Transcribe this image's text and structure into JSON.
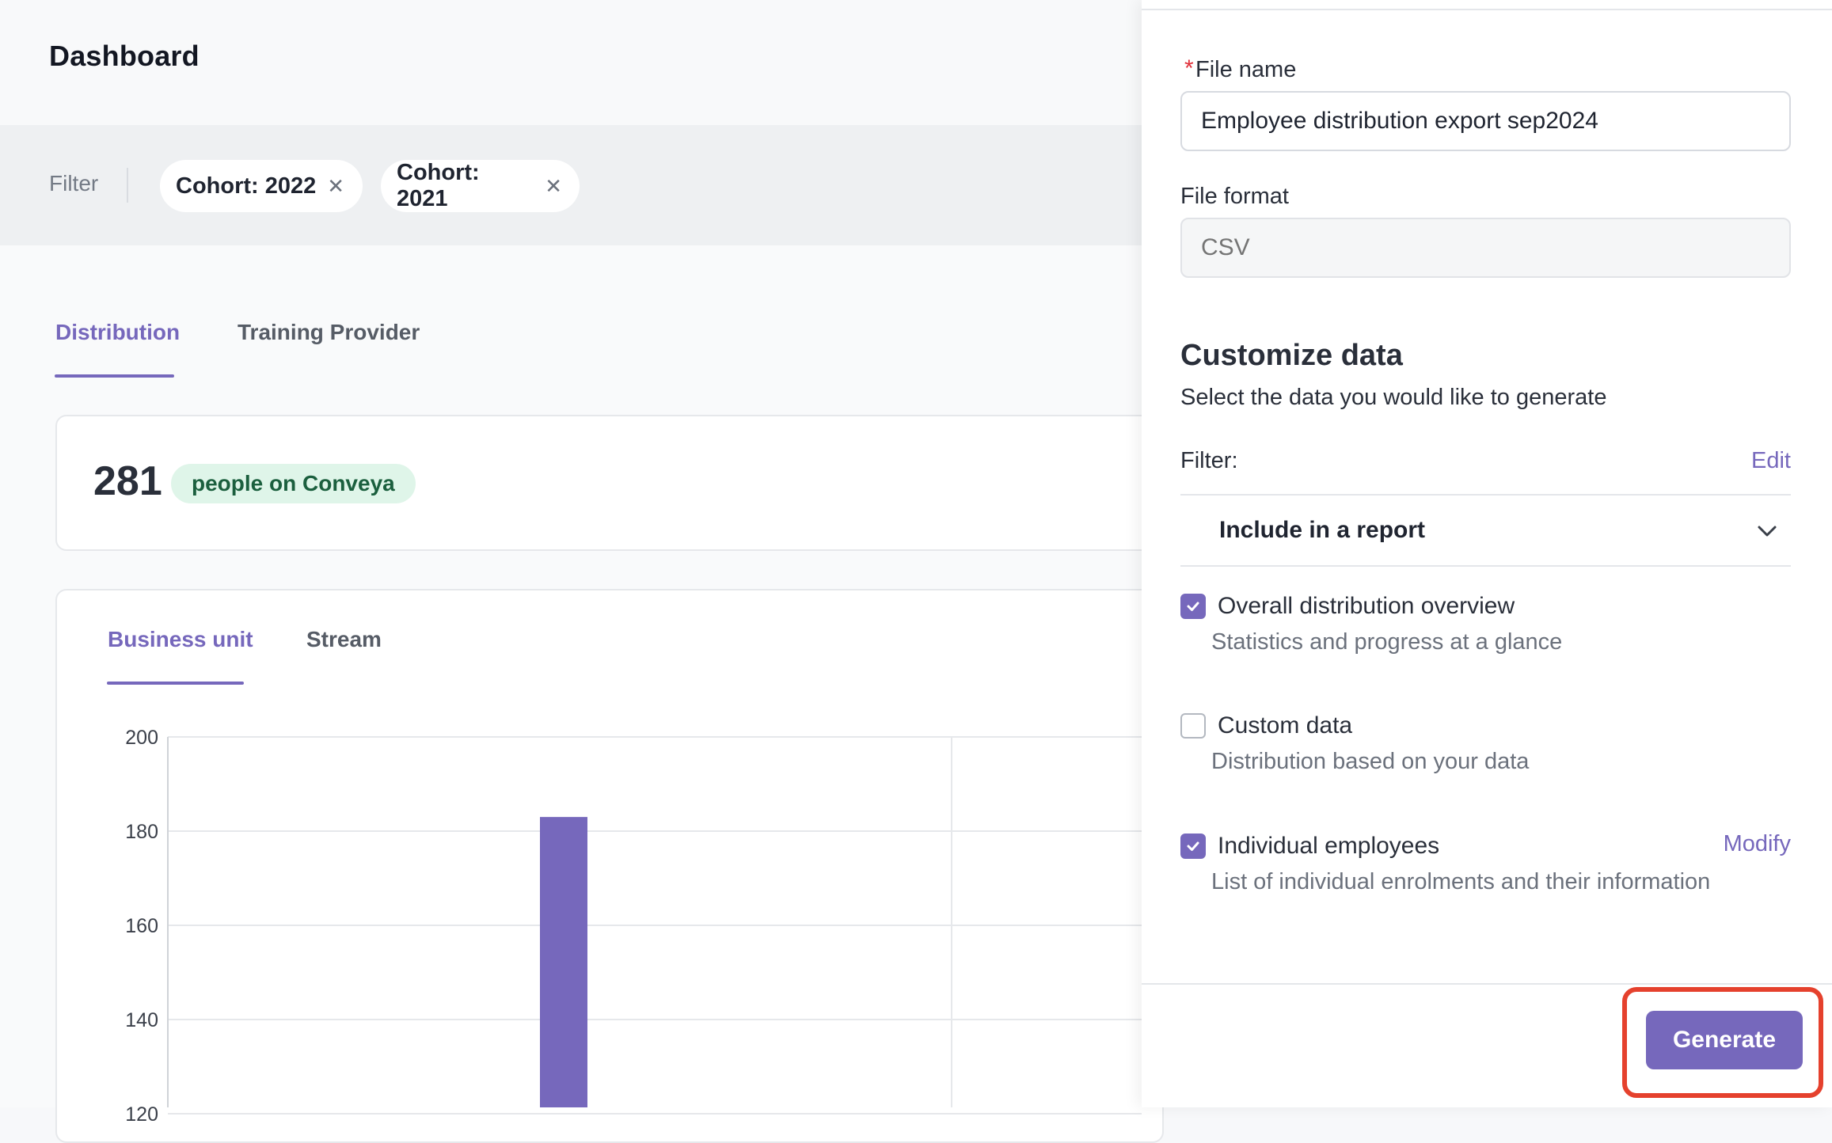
{
  "header": {
    "title": "Dashboard"
  },
  "filters": {
    "label": "Filter",
    "chips": [
      {
        "label": "Cohort: 2022",
        "remove_icon": "close-icon"
      },
      {
        "label": "Cohort: 2021",
        "remove_icon": "close-icon"
      }
    ]
  },
  "tabs": {
    "distribution": "Distribution",
    "training_provider": "Training Provider"
  },
  "stats": {
    "count": "281",
    "label": "people on Conveya"
  },
  "chart": {
    "tabs": {
      "business_unit": "Business unit",
      "stream": "Stream"
    }
  },
  "chart_data": {
    "type": "bar",
    "categories": [
      "",
      ""
    ],
    "values": [
      183,
      null
    ],
    "yticks": [
      "200",
      "180",
      "160",
      "140",
      "120"
    ],
    "ylim": [
      120,
      200
    ],
    "bar_color": "#7668bc",
    "grid": true
  },
  "drawer": {
    "required_mark": "*",
    "file_name": {
      "label": "File name",
      "value": "Employee distribution export sep2024"
    },
    "file_format": {
      "label": "File format",
      "placeholder": "CSV"
    },
    "customize": {
      "title": "Customize data",
      "subtitle": "Select the data you would like to generate",
      "filter_label": "Filter:",
      "edit_label": "Edit",
      "collapse_label": "Include in a report"
    },
    "options": [
      {
        "title": "Overall distribution overview",
        "subtitle": "Statistics and progress at a glance",
        "checked": true
      },
      {
        "title": "Custom data",
        "subtitle": "Distribution based on your data",
        "checked": false
      },
      {
        "title": "Individual employees",
        "subtitle": "List of individual enrolments and their information",
        "checked": true
      }
    ],
    "modify_label": "Modify",
    "generate_label": "Generate"
  },
  "colors": {
    "accent": "#7668bc",
    "highlight": "#e5412d",
    "badge_bg": "#dff5e9",
    "badge_text": "#1b5f3e"
  }
}
